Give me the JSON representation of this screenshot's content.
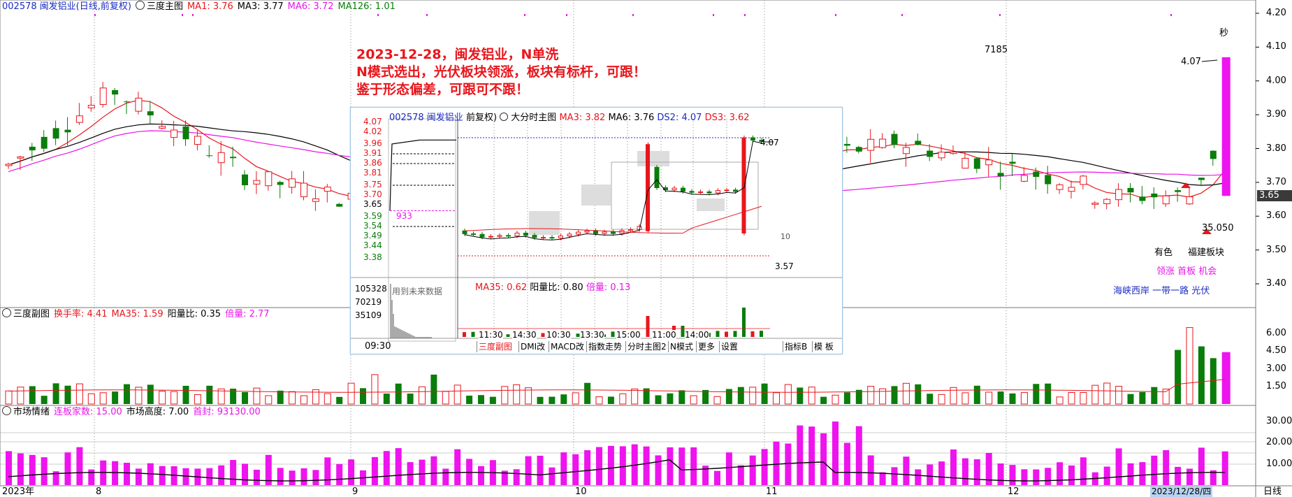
{
  "header": {
    "code": "002578",
    "name": "闽发铝业",
    "period": "(日线,前复权)",
    "icon_name": "settings-circle-icon",
    "panel": "三度主图",
    "ma1": "MA1: 3.76",
    "ma3": "MA3: 3.77",
    "ma6": "MA6: 3.72",
    "ma126": "MA126: 1.01"
  },
  "note": {
    "line1": "2023-12-28，闽发铝业，N单洗",
    "line2": "N模式选出，光伏板块领涨，板块有标杆，可跟！",
    "line3": "鉴于形态偏差，可跟可不跟！"
  },
  "price_axis": [
    "4.20",
    "4.10",
    "4.00",
    "3.90",
    "3.80",
    "3.70",
    "3.60",
    "3.50",
    "3.40"
  ],
  "current_price": "3.65",
  "top_right": {
    "sec_label": "秒",
    "num_7185": "7185",
    "high_label": "4.07",
    "low_label": "35.050",
    "sector_line1a": "有色",
    "sector_line1b": "福建板块",
    "sector_line2": "领涨 首板 机会",
    "sector_line3": "海峡西岸 一带一路 光伏"
  },
  "sub1": {
    "icon_name": "settings-circle-icon",
    "title": "三度副图",
    "turnover": "换手率: 4.41",
    "ma35": "MA35: 1.59",
    "yang": "阳量比: 0.35",
    "bei": "倍量: 2.77",
    "axis": [
      "6.00",
      "4.50",
      "3.00",
      "1.50"
    ]
  },
  "sub2": {
    "icon_name": "settings-circle-icon",
    "title": "市场情绪",
    "lianban": "连板家数: 15.00",
    "height": "市场高度: 7.00",
    "shoufeng": "首封: 93130.00",
    "axis": [
      "30.00",
      "20.00",
      "10.00"
    ]
  },
  "date_axis": {
    "labels": [
      "2023年",
      "8",
      "9",
      "10",
      "11",
      "12"
    ],
    "current": "2023/12/28/四",
    "mode": "日线"
  },
  "inset": {
    "code": "002578",
    "name": "闽发铝业",
    "period": "前复权)",
    "panel": "大分时主图",
    "ma3": "MA3: 3.82",
    "ma6": "MA6: 3.76",
    "ds2": "DS2: 4.07",
    "ds3": "DS3: 3.62",
    "price_axis": [
      "4.07",
      "4.02",
      "3.96",
      "3.91",
      "3.86",
      "3.81",
      "3.75",
      "3.70",
      "3.65",
      "3.59",
      "3.54",
      "3.49",
      "3.44",
      "3.38"
    ],
    "vol_axis": [
      "105328",
      "70219",
      "35109"
    ],
    "magenta_label": "933",
    "future_label": "用到未来数据",
    "high_label": "4.07",
    "low_label": "3.57",
    "small_label": "10",
    "sub_ma35": "MA35: 0.62",
    "sub_yang": "阳量比: 0.80",
    "sub_bei": "倍量: 0.13",
    "time_left": "09:30",
    "times": [
      "11:30",
      "14:30",
      "10:30",
      "13:30",
      "15:00",
      "11:00",
      "14:00"
    ],
    "tabs": [
      "三度副图",
      "DMI改",
      "MACD改",
      "指数走势",
      "分时主图2",
      "N模式",
      "更多",
      "设置",
      "指标B",
      "模 板"
    ]
  }
}
